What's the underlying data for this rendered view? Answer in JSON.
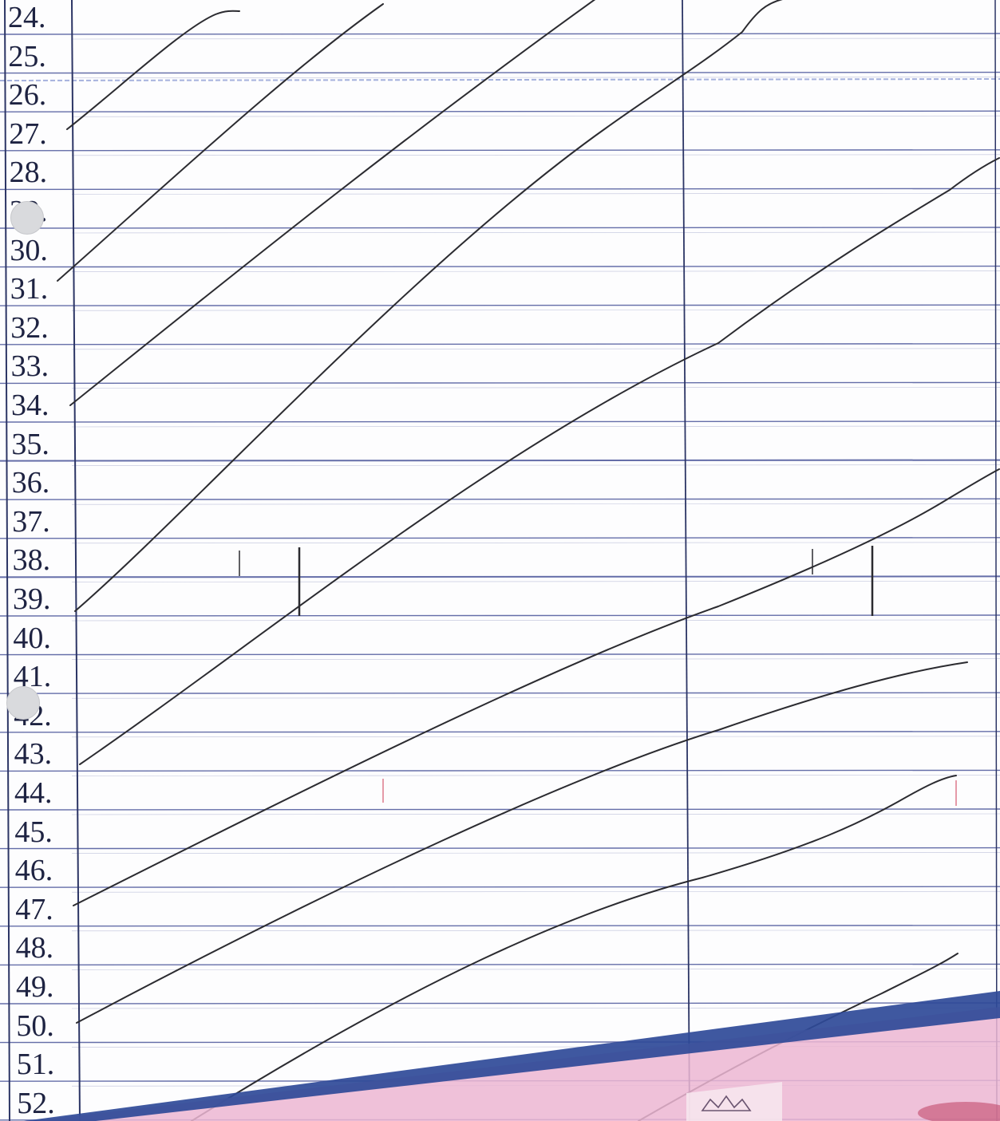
{
  "ledger": {
    "rows": [
      {
        "label": "24."
      },
      {
        "label": "25."
      },
      {
        "label": "26."
      },
      {
        "label": "27."
      },
      {
        "label": "28."
      },
      {
        "label": "29."
      },
      {
        "label": "30."
      },
      {
        "label": "31."
      },
      {
        "label": "32."
      },
      {
        "label": "33."
      },
      {
        "label": "34."
      },
      {
        "label": "35."
      },
      {
        "label": "36."
      },
      {
        "label": "37."
      },
      {
        "label": "38."
      },
      {
        "label": "39."
      },
      {
        "label": "40."
      },
      {
        "label": "41."
      },
      {
        "label": "42."
      },
      {
        "label": "43."
      },
      {
        "label": "44."
      },
      {
        "label": "45."
      },
      {
        "label": "46."
      },
      {
        "label": "47."
      },
      {
        "label": "48."
      },
      {
        "label": "49."
      },
      {
        "label": "50."
      },
      {
        "label": "51."
      },
      {
        "label": "52."
      }
    ]
  },
  "colors": {
    "paper": "#fdfdfe",
    "rule_line": "#4a559a",
    "column_line": "#2c3565",
    "ink": "#2b2b30",
    "number_ink": "#1e2342",
    "seal_band": "#2f4a98",
    "seal_pink": "#ecb6d2"
  }
}
